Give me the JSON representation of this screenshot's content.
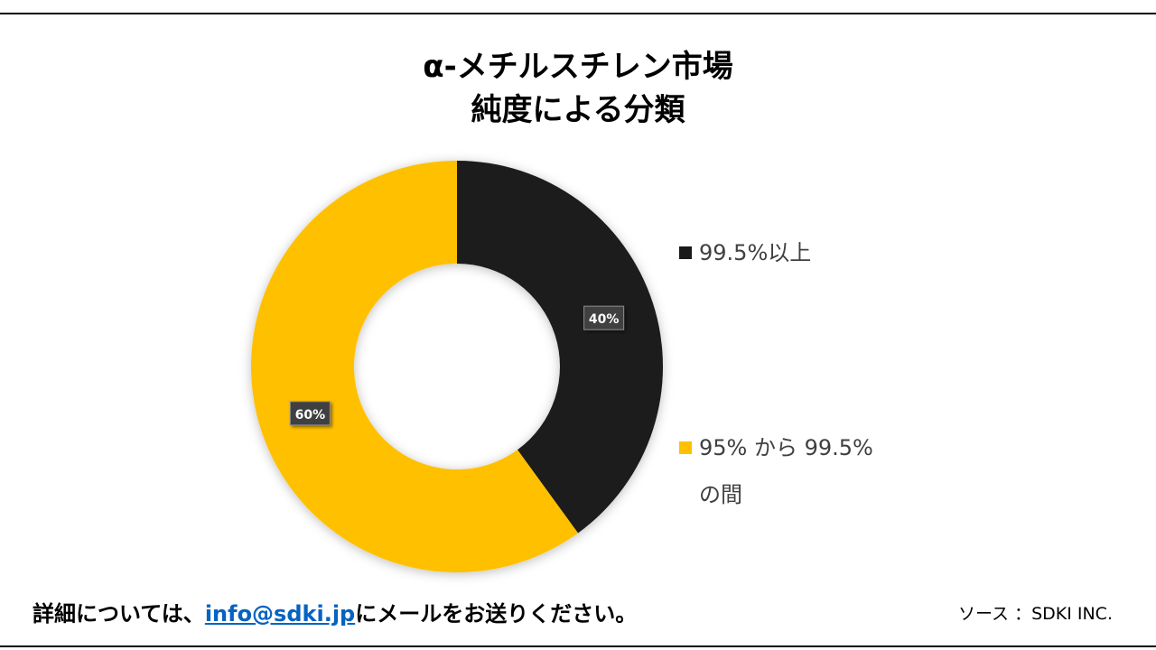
{
  "title_line1": "α-メチルスチレン市場",
  "title_line2": "純度による分類",
  "chart_data": {
    "type": "pie",
    "donut": true,
    "categories": [
      "99.5%以上",
      "95% から 99.5%の間"
    ],
    "values": [
      40,
      60
    ],
    "data_labels": [
      "40%",
      "60%"
    ],
    "colors": [
      "#1a1a1a",
      "#FFC000"
    ],
    "legend_position": "right"
  },
  "legend": {
    "item1": "99.5%以上",
    "item2_line1": "95% から 99.5%",
    "item2_line2": "の間"
  },
  "footer": {
    "prefix": "詳細については、",
    "email": "info@sdki.jp",
    "suffix": "にメールをお送りください。",
    "source": "ソース ：SDKI INC."
  }
}
